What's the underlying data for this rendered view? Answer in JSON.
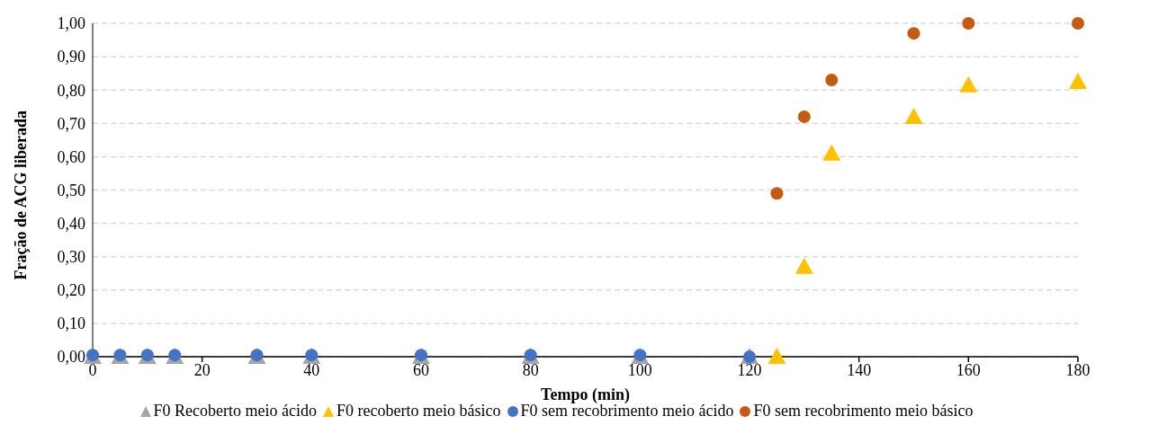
{
  "chart_data": {
    "type": "scatter",
    "xlabel": "Tempo (min)",
    "ylabel": "Fração de ACG liberada",
    "xlim": [
      0,
      180
    ],
    "xticks": [
      0,
      20,
      40,
      60,
      80,
      100,
      120,
      140,
      160,
      180
    ],
    "ylim": [
      0,
      1
    ],
    "yticks": [
      {
        "value": 0,
        "label": "0,00"
      },
      {
        "value": 0.1,
        "label": "0,10"
      },
      {
        "value": 0.2,
        "label": "0,20"
      },
      {
        "value": 0.3,
        "label": "0,30"
      },
      {
        "value": 0.4,
        "label": "0,40"
      },
      {
        "value": 0.5,
        "label": "0,50"
      },
      {
        "value": 0.6,
        "label": "0,60"
      },
      {
        "value": 0.7,
        "label": "0,70"
      },
      {
        "value": 0.8,
        "label": "0,80"
      },
      {
        "value": 0.9,
        "label": "0,90"
      },
      {
        "value": 1,
        "label": "1,00"
      }
    ],
    "grid": "y",
    "legend": "bottom",
    "series": [
      {
        "name": "F0 Recoberto meio ácido",
        "color": "#a5a5a5",
        "marker": "triangle",
        "x": [
          0,
          5,
          10,
          15,
          30,
          40,
          60,
          80,
          100,
          120
        ],
        "values": [
          0,
          0,
          0,
          0,
          0,
          0,
          0,
          0,
          0,
          0
        ]
      },
      {
        "name": "F0 recoberto meio básico",
        "color": "#ffc000",
        "marker": "triangle",
        "x": [
          125,
          130,
          135,
          150,
          160,
          180
        ],
        "values": [
          0,
          0.27,
          0.61,
          0.72,
          0.815,
          0.825
        ]
      },
      {
        "name": "F0 sem recobrimento meio ácido",
        "color": "#4472c4",
        "marker": "circle",
        "x": [
          0,
          5,
          10,
          15,
          30,
          40,
          60,
          80,
          100,
          120
        ],
        "values": [
          0.005,
          0.005,
          0.005,
          0.005,
          0.005,
          0.005,
          0.005,
          0.005,
          0.005,
          0
        ]
      },
      {
        "name": "F0 sem recobrimento meio básico",
        "color": "#c55a11",
        "marker": "circle",
        "x": [
          125,
          130,
          135,
          150,
          160,
          180
        ],
        "values": [
          0.49,
          0.72,
          0.83,
          0.97,
          1,
          1
        ]
      }
    ]
  }
}
